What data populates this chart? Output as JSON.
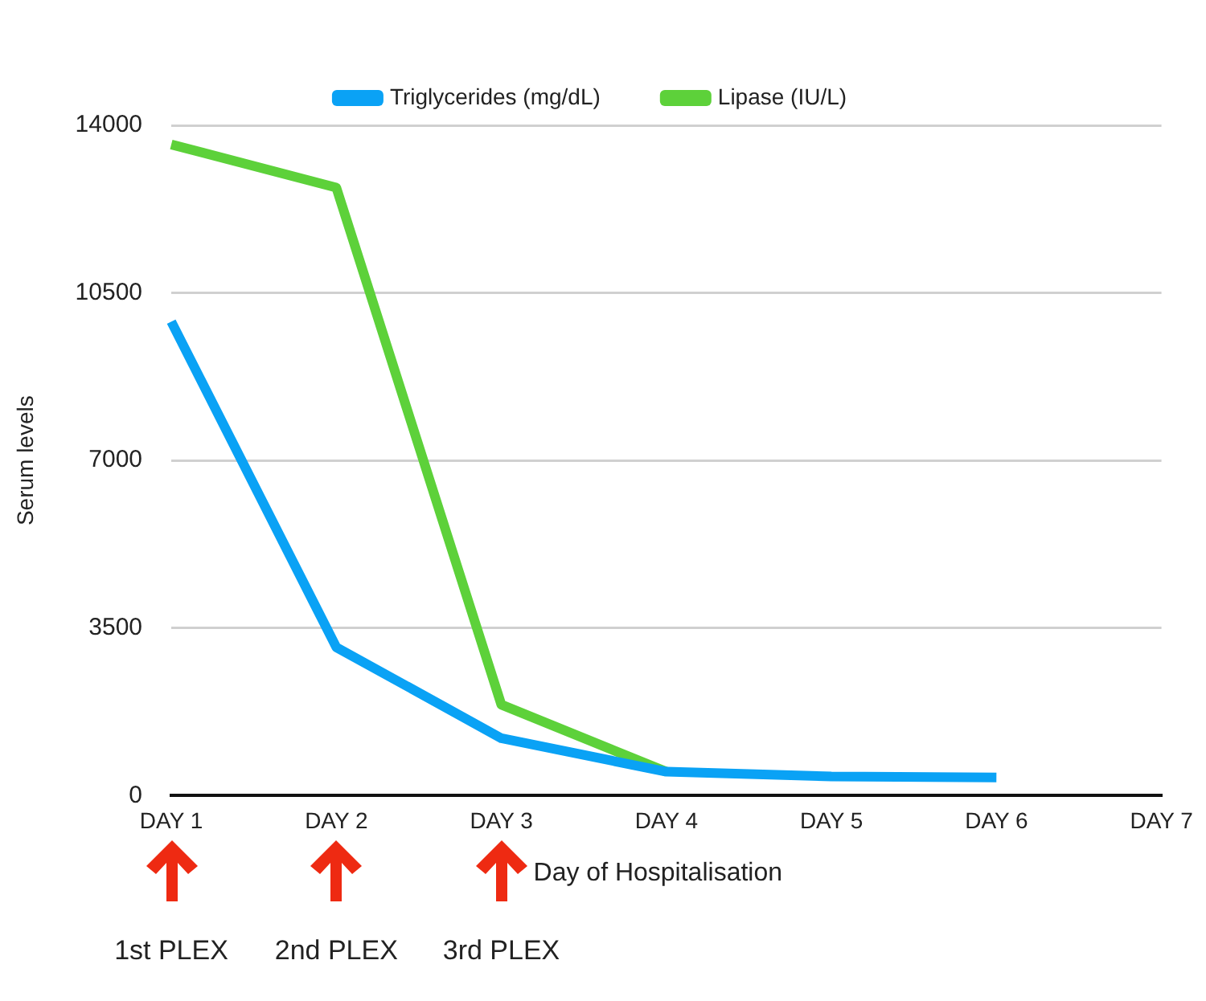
{
  "chart_data": {
    "type": "line",
    "xlabel": "Day of Hospitalisation",
    "ylabel": "Serum levels",
    "categories": [
      "DAY 1",
      "DAY 2",
      "DAY 3",
      "DAY 4",
      "DAY 5",
      "DAY 6",
      "DAY 7"
    ],
    "series": [
      {
        "name": "Triglycerides (mg/dL)",
        "color": "#0aa2f5",
        "values": [
          9900,
          3100,
          1200,
          500,
          400,
          380,
          null
        ]
      },
      {
        "name": "Lipase (IU/L)",
        "color": "#5dd13a",
        "values": [
          13600,
          12700,
          1900,
          500,
          null,
          null,
          null
        ]
      }
    ],
    "ylim": [
      0,
      14000
    ],
    "yticks": [
      0,
      3500,
      7000,
      10500,
      14000
    ],
    "grid": "y",
    "legend": "top",
    "marker": "none",
    "line_style": "solid",
    "annotations": [
      "1st PLEX",
      "2nd PLEX",
      "3rd PLEX"
    ]
  }
}
